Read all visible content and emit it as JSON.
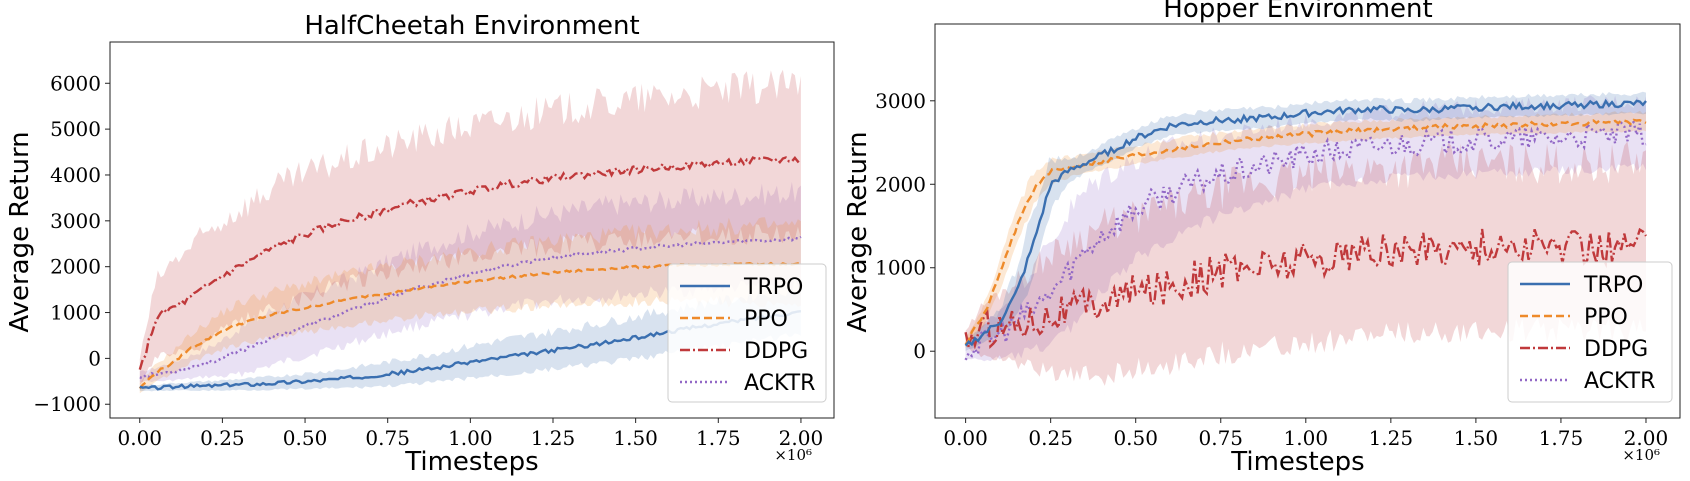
{
  "colors": {
    "TRPO": "#3a6fb0",
    "PPO": "#ee8a2a",
    "DDPG": "#c0393b",
    "ACKTR": "#9268c6"
  },
  "chart_data": [
    {
      "type": "line",
      "title": "HalfCheetah Environment",
      "xlabel": "Timesteps",
      "ylabel": "Average Return",
      "x_multiplier": "×10⁶",
      "xlim": [
        -0.09,
        2.1
      ],
      "ylim": [
        -1300,
        6900
      ],
      "xticks": [
        0.0,
        0.25,
        0.5,
        0.75,
        1.0,
        1.25,
        1.5,
        1.75,
        2.0
      ],
      "xtick_labels": [
        "0.00",
        "0.25",
        "0.50",
        "0.75",
        "1.00",
        "1.25",
        "1.50",
        "1.75",
        "2.00"
      ],
      "yticks": [
        -1000,
        0,
        1000,
        2000,
        3000,
        4000,
        5000,
        6000
      ],
      "ytick_labels": [
        "−1000",
        "0",
        "1000",
        "2000",
        "3000",
        "4000",
        "5000",
        "6000"
      ],
      "legend": "lower-right",
      "x": [
        0.0,
        0.05,
        0.1,
        0.15,
        0.2,
        0.25,
        0.3,
        0.35,
        0.4,
        0.5,
        0.6,
        0.7,
        0.8,
        0.9,
        1.0,
        1.1,
        1.2,
        1.3,
        1.4,
        1.5,
        1.6,
        1.7,
        1.8,
        1.9,
        2.0
      ],
      "series": [
        {
          "name": "TRPO",
          "style": "solid",
          "noise": 40,
          "values": [
            -650,
            -640,
            -620,
            -610,
            -600,
            -590,
            -570,
            -560,
            -540,
            -500,
            -450,
            -380,
            -300,
            -200,
            -80,
            20,
            120,
            230,
            330,
            450,
            580,
            700,
            810,
            920,
            1020
          ],
          "band": [
            60,
            70,
            80,
            90,
            100,
            110,
            120,
            130,
            140,
            170,
            200,
            240,
            280,
            320,
            350,
            380,
            400,
            420,
            440,
            460,
            470,
            480,
            490,
            500,
            500
          ]
        },
        {
          "name": "PPO",
          "style": "dashed",
          "noise": 25,
          "values": [
            -650,
            -300,
            -100,
            200,
            400,
            600,
            750,
            850,
            950,
            1100,
            1250,
            1370,
            1480,
            1580,
            1680,
            1760,
            1830,
            1900,
            1950,
            1990,
            2020,
            2040,
            2050,
            2060,
            2050
          ],
          "band": [
            100,
            180,
            250,
            300,
            350,
            400,
            450,
            480,
            500,
            520,
            550,
            580,
            600,
            620,
            650,
            680,
            700,
            720,
            740,
            760,
            780,
            800,
            820,
            840,
            850
          ]
        },
        {
          "name": "DDPG",
          "style": "dashdot",
          "noise": 80,
          "values": [
            -300,
            900,
            1100,
            1300,
            1550,
            1800,
            2000,
            2200,
            2400,
            2700,
            2950,
            3150,
            3350,
            3500,
            3650,
            3780,
            3880,
            3970,
            4050,
            4120,
            4180,
            4230,
            4280,
            4320,
            4350
          ],
          "band": [
            300,
            800,
            1000,
            1100,
            1150,
            1200,
            1250,
            1280,
            1300,
            1320,
            1340,
            1360,
            1380,
            1400,
            1420,
            1440,
            1460,
            1480,
            1500,
            1520,
            1540,
            1560,
            1580,
            1600,
            1600
          ]
        },
        {
          "name": "ACKTR",
          "style": "dotted",
          "noise": 40,
          "values": [
            -400,
            -350,
            -280,
            -200,
            -100,
            0,
            150,
            300,
            450,
            700,
            950,
            1200,
            1450,
            1650,
            1850,
            2000,
            2150,
            2250,
            2330,
            2400,
            2450,
            2500,
            2550,
            2580,
            2620
          ],
          "band": [
            100,
            150,
            200,
            250,
            300,
            400,
            500,
            550,
            600,
            650,
            700,
            750,
            800,
            850,
            900,
            900,
            950,
            950,
            1000,
            1000,
            1000,
            1000,
            1000,
            1000,
            1000
          ]
        }
      ]
    },
    {
      "type": "line",
      "title": "Hopper Environment",
      "xlabel": "Timesteps",
      "ylabel": "Average Return",
      "x_multiplier": "×10⁶",
      "xlim": [
        -0.09,
        2.1
      ],
      "ylim": [
        -800,
        3920
      ],
      "xticks": [
        0.0,
        0.25,
        0.5,
        0.75,
        1.0,
        1.25,
        1.5,
        1.75,
        2.0
      ],
      "xtick_labels": [
        "0.00",
        "0.25",
        "0.50",
        "0.75",
        "1.00",
        "1.25",
        "1.50",
        "1.75",
        "2.00"
      ],
      "yticks": [
        0,
        1000,
        2000,
        3000
      ],
      "ytick_labels": [
        "0",
        "1000",
        "2000",
        "3000"
      ],
      "legend": "lower-right",
      "x": [
        0.0,
        0.05,
        0.1,
        0.15,
        0.2,
        0.25,
        0.3,
        0.35,
        0.4,
        0.5,
        0.6,
        0.7,
        0.8,
        0.9,
        1.0,
        1.1,
        1.2,
        1.3,
        1.4,
        1.5,
        1.6,
        1.7,
        1.8,
        1.9,
        2.0
      ],
      "series": [
        {
          "name": "TRPO",
          "style": "solid",
          "noise": 40,
          "values": [
            50,
            200,
            350,
            700,
            1300,
            2000,
            2150,
            2250,
            2350,
            2550,
            2700,
            2750,
            2780,
            2800,
            2850,
            2880,
            2900,
            2880,
            2900,
            2920,
            2930,
            2940,
            2950,
            2960,
            2970
          ],
          "band": [
            50,
            100,
            150,
            300,
            400,
            300,
            150,
            120,
            120,
            120,
            120,
            120,
            120,
            120,
            120,
            120,
            120,
            120,
            120,
            120,
            120,
            120,
            120,
            120,
            120
          ]
        },
        {
          "name": "PPO",
          "style": "dashed",
          "noise": 30,
          "values": [
            100,
            400,
            900,
            1500,
            1950,
            2150,
            2200,
            2250,
            2280,
            2350,
            2420,
            2480,
            2530,
            2570,
            2600,
            2630,
            2650,
            2670,
            2690,
            2700,
            2710,
            2720,
            2730,
            2740,
            2750
          ],
          "band": [
            60,
            120,
            180,
            200,
            200,
            150,
            120,
            110,
            110,
            110,
            110,
            110,
            110,
            110,
            110,
            110,
            110,
            110,
            110,
            110,
            110,
            110,
            110,
            110,
            110
          ]
        },
        {
          "name": "DDPG",
          "style": "dashdot",
          "noise": 220,
          "values": [
            150,
            250,
            300,
            350,
            400,
            450,
            500,
            550,
            600,
            700,
            800,
            900,
            1000,
            1050,
            1100,
            1150,
            1200,
            1200,
            1250,
            1250,
            1250,
            1250,
            1250,
            1250,
            1300
          ],
          "band": [
            100,
            300,
            400,
            500,
            600,
            700,
            800,
            850,
            900,
            900,
            950,
            950,
            1000,
            1000,
            1000,
            1000,
            1000,
            1000,
            1000,
            1000,
            1000,
            1000,
            1000,
            1000,
            1000
          ]
        },
        {
          "name": "ACKTR",
          "style": "dotted",
          "noise": 150,
          "values": [
            0,
            100,
            200,
            350,
            500,
            700,
            950,
            1200,
            1400,
            1700,
            1900,
            2050,
            2150,
            2250,
            2350,
            2400,
            2450,
            2500,
            2500,
            2520,
            2540,
            2550,
            2570,
            2590,
            2600
          ],
          "band": [
            100,
            200,
            300,
            400,
            500,
            600,
            700,
            700,
            700,
            600,
            550,
            500,
            450,
            450,
            400,
            400,
            400,
            400,
            400,
            400,
            400,
            400,
            400,
            400,
            400
          ]
        }
      ]
    }
  ]
}
